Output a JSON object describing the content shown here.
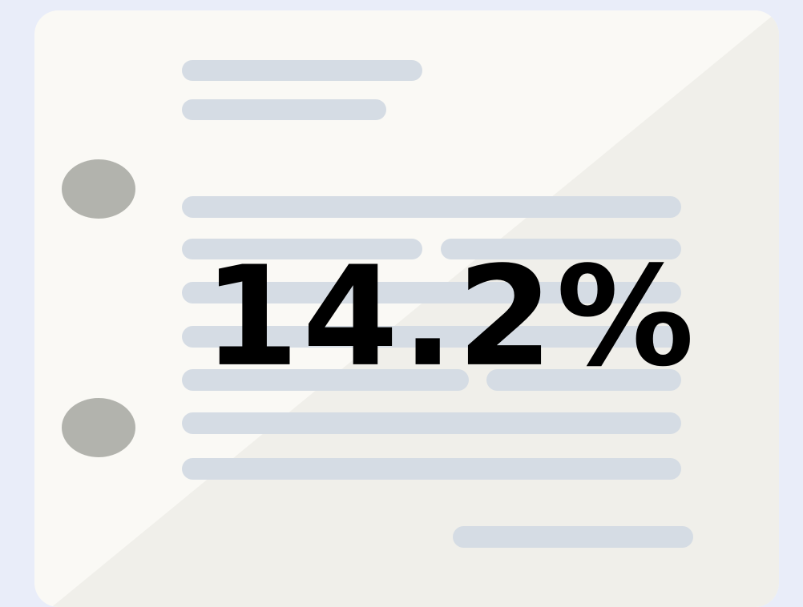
{
  "figure": {
    "value_text": "14.2%"
  }
}
